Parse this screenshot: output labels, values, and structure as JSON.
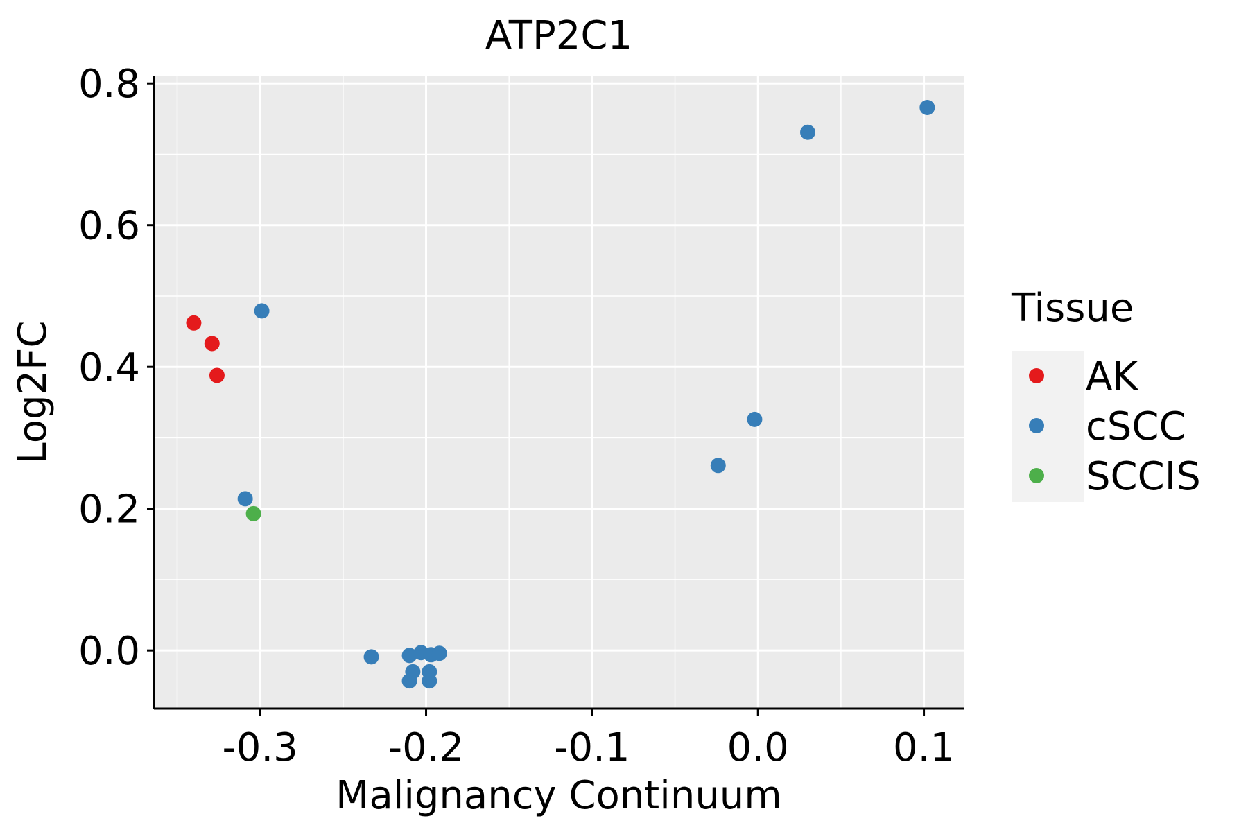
{
  "chart_data": {
    "type": "scatter",
    "title": "ATP2C1",
    "xlabel": "Malignancy Continuum",
    "ylabel": "Log2FC",
    "xlim": [
      -0.364,
      0.124
    ],
    "ylim": [
      -0.082,
      0.81
    ],
    "xticks": [
      -0.3,
      -0.2,
      -0.1,
      0.0,
      0.1
    ],
    "xtick_labels": [
      "-0.3",
      "-0.2",
      "-0.1",
      "0.0",
      "0.1"
    ],
    "yticks": [
      0.0,
      0.2,
      0.4,
      0.6,
      0.8
    ],
    "ytick_labels": [
      "0.0",
      "0.2",
      "0.4",
      "0.6",
      "0.8"
    ],
    "grid": true,
    "legend": {
      "title": "Tissue",
      "position": "right",
      "entries": [
        {
          "name": "AK",
          "color": "#E41A1C"
        },
        {
          "name": "cSCC",
          "color": "#377EB8"
        },
        {
          "name": "SCCIS",
          "color": "#4DAF4A"
        }
      ]
    },
    "series": [
      {
        "name": "AK",
        "color": "#E41A1C",
        "points": [
          [
            -0.34,
            0.462
          ],
          [
            -0.329,
            0.433
          ],
          [
            -0.326,
            0.388
          ]
        ]
      },
      {
        "name": "cSCC",
        "color": "#377EB8",
        "points": [
          [
            -0.299,
            0.479
          ],
          [
            -0.309,
            0.214
          ],
          [
            -0.233,
            -0.009
          ],
          [
            -0.21,
            -0.007
          ],
          [
            -0.203,
            -0.003
          ],
          [
            -0.197,
            -0.006
          ],
          [
            -0.192,
            -0.004
          ],
          [
            -0.208,
            -0.03
          ],
          [
            -0.198,
            -0.03
          ],
          [
            -0.21,
            -0.043
          ],
          [
            -0.198,
            -0.043
          ],
          [
            -0.024,
            0.261
          ],
          [
            -0.002,
            0.326
          ],
          [
            0.03,
            0.731
          ],
          [
            0.102,
            0.766
          ]
        ]
      },
      {
        "name": "SCCIS",
        "color": "#4DAF4A",
        "points": [
          [
            -0.304,
            0.193
          ]
        ]
      }
    ]
  }
}
